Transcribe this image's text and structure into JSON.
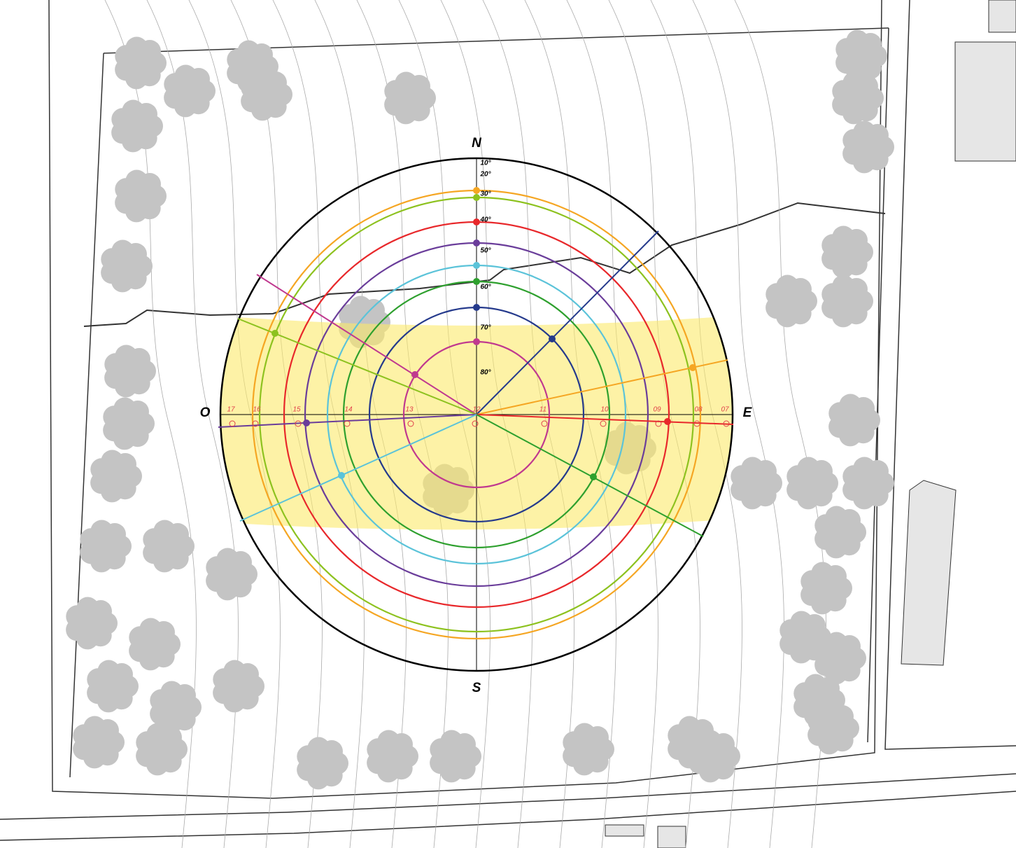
{
  "compass": {
    "north": "N",
    "south": "S",
    "west": "O",
    "east": "E"
  },
  "altitude_labels": [
    "10°",
    "20°",
    "30°",
    "40°",
    "50°",
    "60°",
    "70°",
    "80°"
  ],
  "hour_labels": [
    "17",
    "16",
    "15",
    "14",
    "13",
    "12",
    "11",
    "10",
    "09",
    "08",
    "07"
  ]
}
